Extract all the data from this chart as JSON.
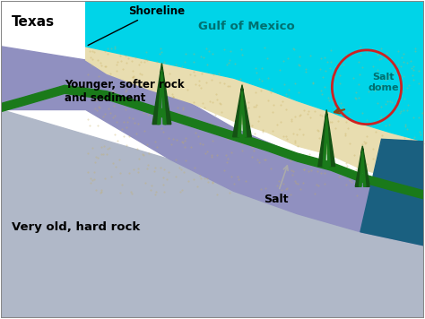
{
  "figsize": [
    4.74,
    3.56
  ],
  "dpi": 100,
  "xlim": [
    0,
    10
  ],
  "ylim": [
    0,
    7
  ],
  "colors": {
    "sky": "#ffffff",
    "water": "#00d4e8",
    "deep_water": "#1a6080",
    "sediment": "#e8ddb0",
    "old_rock": "#b0b8c8",
    "purple_layer": "#9090c0",
    "green": "#1a7a1a",
    "dark_green": "#145214",
    "salt_dome_circle": "#cc2222",
    "border": "#888888",
    "text_dark": "#000000",
    "text_teal": "#007070"
  },
  "labels": {
    "texas": "Texas",
    "shoreline": "Shoreline",
    "gulf": "Gulf of Mexico",
    "young_rock": "Younger, softer rock\nand sediment",
    "old_rock": "Very old, hard rock",
    "salt": "Salt",
    "salt_dome": "Salt\ndome"
  }
}
